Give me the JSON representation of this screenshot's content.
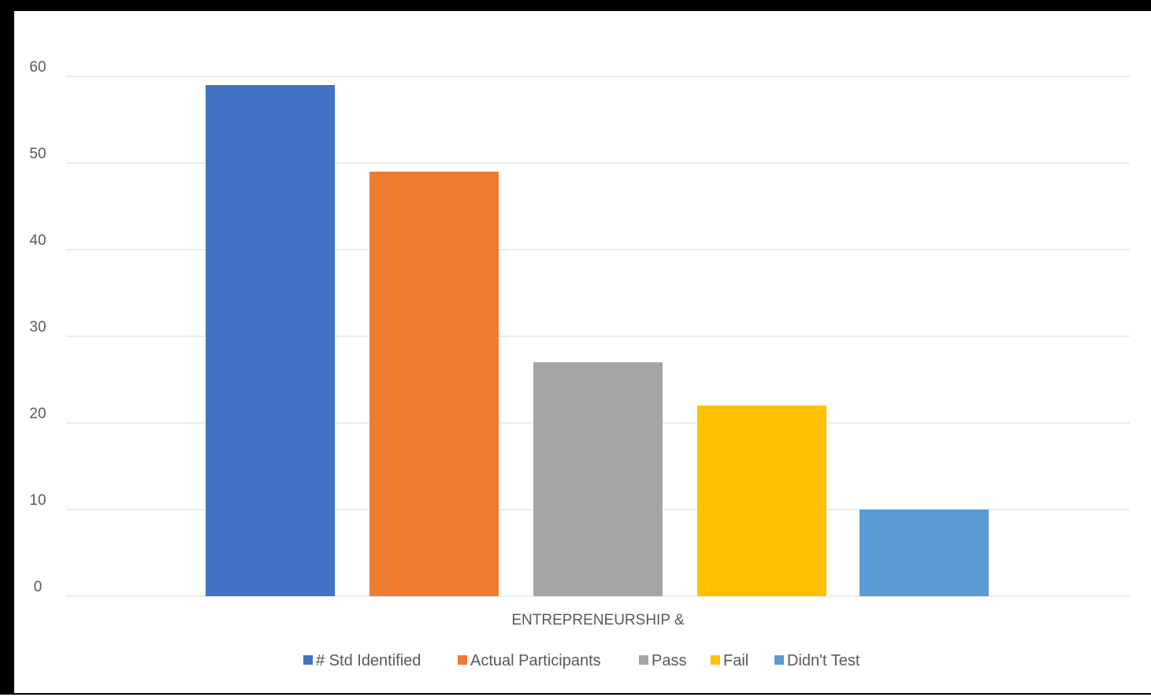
{
  "chart_data": {
    "type": "bar",
    "title": "",
    "xlabel": "",
    "ylabel": "",
    "categories": [
      "ENTREPRENEURSHIP &"
    ],
    "ylim": [
      0,
      60
    ],
    "yticks": [
      0,
      10,
      20,
      30,
      40,
      50,
      60
    ],
    "grid": true,
    "legend_position": "bottom",
    "series": [
      {
        "name": "# Std Identified",
        "values": [
          59
        ],
        "color": "#4472C4"
      },
      {
        "name": "Actual Participants",
        "values": [
          49
        ],
        "color": "#ED7D31"
      },
      {
        "name": "Pass",
        "values": [
          27
        ],
        "color": "#A5A5A5"
      },
      {
        "name": "Fail",
        "values": [
          22
        ],
        "color": "#FFC000"
      },
      {
        "name": "Didn't Test",
        "values": [
          10
        ],
        "color": "#5B9BD5"
      }
    ]
  },
  "colors": {
    "gridline": "#d9d9d9",
    "axis_text": "#595959",
    "frame": "#000000"
  }
}
